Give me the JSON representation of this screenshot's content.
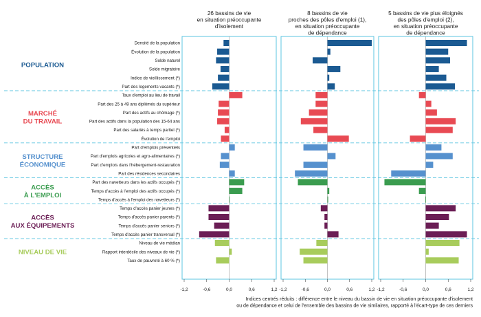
{
  "chart_data": {
    "type": "bar",
    "orientation": "horizontal",
    "xlim": [
      -1.2,
      1.2
    ],
    "xticks": [
      "-1,2",
      "-0,6",
      "0,0",
      "0,6",
      "1,2"
    ],
    "note_lines": [
      "Indices centrés réduits : différence entre le niveau du bassin de vie en situation préoccupante d'isolement",
      "ou de dépendance et celui de l'ensemble des bassins de vie similaires, rapporté à l'écart-type de ces derniers"
    ],
    "panels": [
      {
        "title_lines": [
          "26 bassins de vie",
          "en situation préoccupante",
          "d'isolement"
        ]
      },
      {
        "title_lines": [
          "8 bassins de vie",
          "proches des pôles d'emploi (1),",
          "en situation préoccupante",
          "de dépendance"
        ]
      },
      {
        "title_lines": [
          "5 bassins de vie plus éloignés",
          "des pôles d'emploi (2),",
          "en situation préoccupante",
          "de dépendance"
        ]
      }
    ],
    "groups": [
      {
        "name_lines": [
          "POPULATION"
        ],
        "color": "#1b5a92",
        "indicators": [
          {
            "label": "Densité de la population",
            "values": [
              -0.15,
              1.2,
              1.1
            ]
          },
          {
            "label": "Évolution de la population",
            "values": [
              -0.32,
              0.08,
              0.6
            ]
          },
          {
            "label": "Solde naturel",
            "values": [
              -0.35,
              -0.4,
              0.65
            ]
          },
          {
            "label": "Solde migratoire",
            "values": [
              -0.23,
              0.35,
              0.35
            ]
          },
          {
            "label": "Indice de vieillissement (*)",
            "values": [
              -0.3,
              0.05,
              0.55
            ]
          },
          {
            "label": "Part des logements vacants (*)",
            "values": [
              -0.45,
              0.2,
              0.78
            ]
          }
        ]
      },
      {
        "name_lines": [
          "MARCHÉ",
          "DU TRAVAIL"
        ],
        "color": "#e84a53",
        "indicators": [
          {
            "label": "Taux d'emploi au lieu de travail",
            "values": [
              0.35,
              -0.32,
              -0.18
            ]
          },
          {
            "label": "Part des  25 à 49 ans diplômés du supérieur",
            "values": [
              -0.28,
              -0.32,
              0.15
            ]
          },
          {
            "label": "Part des actifs au chômage (*)",
            "values": [
              -0.3,
              -0.5,
              0.3
            ]
          },
          {
            "label": "Part des actifs dans la population des 15-64 ans",
            "values": [
              -0.32,
              -0.72,
              0.8
            ]
          },
          {
            "label": "Part des salariés à temps partiel (*)",
            "values": [
              -0.12,
              -0.38,
              0.72
            ]
          },
          {
            "label": "Évolution de l'emploi",
            "values": [
              -0.22,
              0.58,
              -0.42
            ]
          }
        ]
      },
      {
        "name_lines": [
          "STRUCTURE",
          "ÉCONOMIQUE"
        ],
        "color": "#5691ce",
        "indicators": [
          {
            "label": "Part d'emplois présentiels",
            "values": [
              0.15,
              -0.65,
              0.42
            ]
          },
          {
            "label": "Part d'emplois agricoles et agro-alimentaires (*)",
            "values": [
              -0.22,
              0.22,
              0.72
            ]
          },
          {
            "label": "Part d'emplois dans l'hébergement-restauration",
            "values": [
              -0.25,
              -0.65,
              0.2
            ]
          },
          {
            "label": "Part des résidences secondaires",
            "values": [
              0.15,
              -0.88,
              -0.92
            ]
          }
        ]
      },
      {
        "name_lines": [
          "ACCÈS",
          "À L'EMPLOI"
        ],
        "color": "#3a9c4f",
        "indicators": [
          {
            "label": "Part des navetteurs dans les actifs occupés (*)",
            "values": [
              0.4,
              -0.8,
              -1.1
            ]
          },
          {
            "label": "Temps d'accès à l'emploi des actifs occupés (*)",
            "values": [
              0.35,
              0.05,
              -0.18
            ]
          },
          {
            "label": "Temps d'accès à l'emploi des navetteurs (*)",
            "values": [
              0.01,
              0.02,
              -0.01
            ]
          }
        ]
      },
      {
        "name_lines": [
          "ACCÈS",
          "AUX ÉQUIPEMENTS"
        ],
        "color": "#6b1e55",
        "indicators": [
          {
            "label": "Temps d'accès panier jeunes (*)",
            "values": [
              -0.55,
              -0.18,
              0.8
            ]
          },
          {
            "label": "Temps d'accès panier parents (*)",
            "values": [
              -0.55,
              -0.08,
              0.62
            ]
          },
          {
            "label": "Temps d'accès panier seniors (*)",
            "values": [
              -0.4,
              -0.08,
              0.35
            ]
          },
          {
            "label": "Temps d'accès panier transversal (*)",
            "values": [
              -0.8,
              0.3,
              1.1
            ]
          }
        ]
      },
      {
        "name_lines": [
          "NIVEAU DE VIE"
        ],
        "color": "#a8cc5c",
        "indicators": [
          {
            "label": "Niveau de vie médian",
            "values": [
              -0.38,
              -0.3,
              0.9
            ]
          },
          {
            "label": "Rapport interdécile des niveaux de vie (*)",
            "values": [
              0.07,
              -0.75,
              0.08
            ]
          },
          {
            "label": "Taux de pauvreté à 60 % (*)",
            "values": [
              -0.35,
              -0.65,
              0.88
            ]
          }
        ]
      }
    ]
  }
}
